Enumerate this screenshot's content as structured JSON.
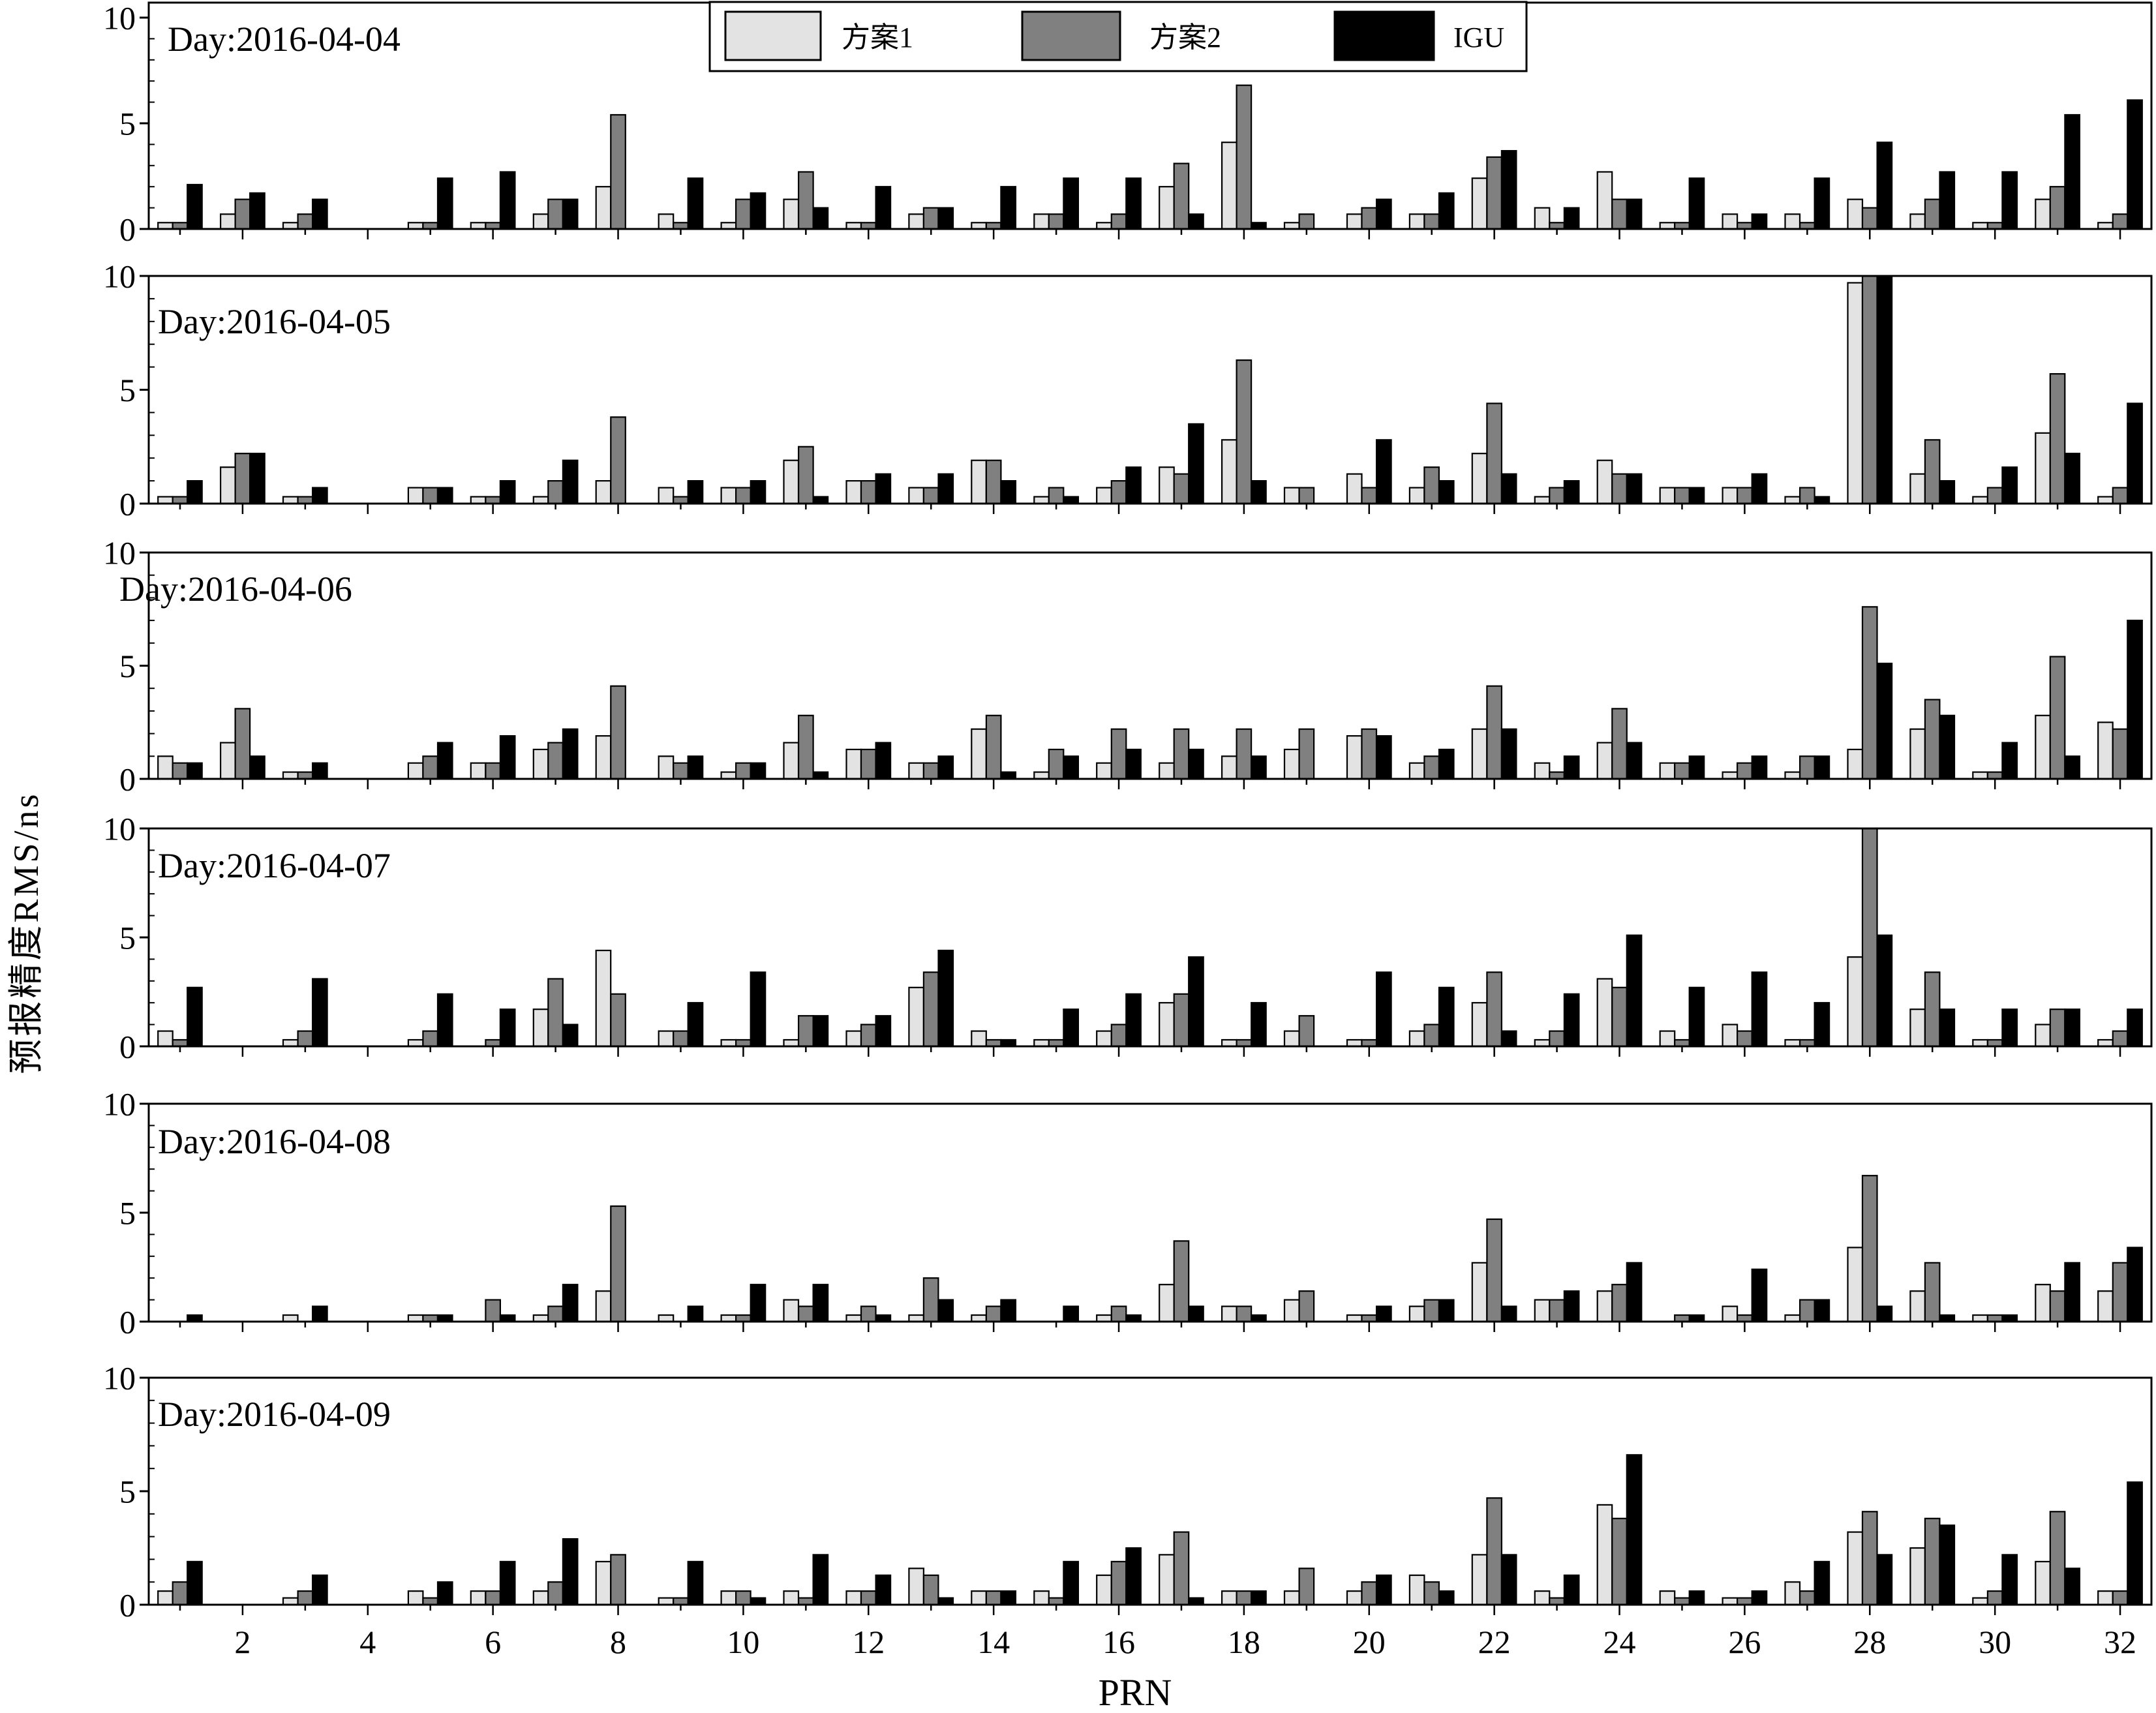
{
  "figure": {
    "ylabel": "预报精度RMS/ns"
  },
  "chart_data": [
    {
      "type": "bar",
      "title": "Day:2016-04-04",
      "categories": [
        1,
        2,
        3,
        4,
        5,
        6,
        7,
        8,
        9,
        10,
        11,
        12,
        13,
        14,
        15,
        16,
        17,
        18,
        19,
        20,
        21,
        22,
        23,
        24,
        25,
        26,
        27,
        28,
        29,
        30,
        31,
        32
      ],
      "series": [
        {
          "name": "方案1",
          "color": "#e3e3e3",
          "values": [
            0.3,
            0.7,
            0.3,
            0,
            0.3,
            0.3,
            0.7,
            2.0,
            0.7,
            0.3,
            1.4,
            0.3,
            0.7,
            0.3,
            0.7,
            0.3,
            2.0,
            4.1,
            0.3,
            0.7,
            0.7,
            2.4,
            1.0,
            2.7,
            0.3,
            0.7,
            0.7,
            1.4,
            0.7,
            0.3,
            1.4,
            0.3
          ]
        },
        {
          "name": "方案2",
          "color": "#808080",
          "values": [
            0.3,
            1.4,
            0.7,
            0,
            0.3,
            0.3,
            1.4,
            5.4,
            0.3,
            1.4,
            2.7,
            0.3,
            1.0,
            0.3,
            0.7,
            0.7,
            3.1,
            6.8,
            0.7,
            1.0,
            0.7,
            3.4,
            0.3,
            1.4,
            0.3,
            0.3,
            0.3,
            1.0,
            1.4,
            0.3,
            2.0,
            0.7
          ]
        },
        {
          "name": "IGU",
          "color": "#000000",
          "values": [
            2.1,
            1.7,
            1.4,
            0,
            2.4,
            2.7,
            1.4,
            0,
            2.4,
            1.7,
            1.0,
            2.0,
            1.0,
            2.0,
            2.4,
            2.4,
            0.7,
            0.3,
            0,
            1.4,
            1.7,
            3.7,
            1.0,
            1.4,
            2.4,
            0.7,
            2.4,
            4.1,
            2.7,
            2.7,
            5.4,
            6.1
          ]
        }
      ],
      "xlim": [
        0.5,
        32.5
      ],
      "ylim": [
        0,
        10
      ],
      "yticks": [
        0,
        5,
        10
      ],
      "grid": false,
      "legend": "top-center"
    },
    {
      "type": "bar",
      "title": "Day:2016-04-05",
      "categories": [
        1,
        2,
        3,
        4,
        5,
        6,
        7,
        8,
        9,
        10,
        11,
        12,
        13,
        14,
        15,
        16,
        17,
        18,
        19,
        20,
        21,
        22,
        23,
        24,
        25,
        26,
        27,
        28,
        29,
        30,
        31,
        32
      ],
      "series": [
        {
          "name": "方案1",
          "color": "#e3e3e3",
          "values": [
            0.3,
            1.6,
            0.3,
            0,
            0.7,
            0.3,
            0.3,
            1.0,
            0.7,
            0.7,
            1.9,
            1.0,
            0.7,
            1.9,
            0.3,
            0.7,
            1.6,
            2.8,
            0.7,
            1.3,
            0.7,
            2.2,
            0.3,
            1.9,
            0.7,
            0.7,
            0.3,
            9.7,
            1.3,
            0.3,
            3.1,
            0.3
          ]
        },
        {
          "name": "方案2",
          "color": "#808080",
          "values": [
            0.3,
            2.2,
            0.3,
            0,
            0.7,
            0.3,
            1.0,
            3.8,
            0.3,
            0.7,
            2.5,
            1.0,
            0.7,
            1.9,
            0.7,
            1.0,
            1.3,
            6.3,
            0.7,
            0.7,
            1.6,
            4.4,
            0.7,
            1.3,
            0.7,
            0.7,
            0.7,
            10,
            2.8,
            0.7,
            5.7,
            0.7
          ]
        },
        {
          "name": "IGU",
          "color": "#000000",
          "values": [
            1.0,
            2.2,
            0.7,
            0,
            0.7,
            1.0,
            1.9,
            0,
            1.0,
            1.0,
            0.3,
            1.3,
            1.3,
            1.0,
            0.3,
            1.6,
            3.5,
            1.0,
            0,
            2.8,
            1.0,
            1.3,
            1.0,
            1.3,
            0.7,
            1.3,
            0.3,
            10,
            1.0,
            1.6,
            2.2,
            4.4
          ]
        }
      ],
      "xlim": [
        0.5,
        32.5
      ],
      "ylim": [
        0,
        10
      ],
      "yticks": [
        0,
        5,
        10
      ],
      "grid": false
    },
    {
      "type": "bar",
      "title": "Day:2016-04-06",
      "categories": [
        1,
        2,
        3,
        4,
        5,
        6,
        7,
        8,
        9,
        10,
        11,
        12,
        13,
        14,
        15,
        16,
        17,
        18,
        19,
        20,
        21,
        22,
        23,
        24,
        25,
        26,
        27,
        28,
        29,
        30,
        31,
        32
      ],
      "series": [
        {
          "name": "方案1",
          "color": "#e3e3e3",
          "values": [
            1.0,
            1.6,
            0.3,
            0,
            0.7,
            0.7,
            1.3,
            1.9,
            1.0,
            0.3,
            1.6,
            1.3,
            0.7,
            2.2,
            0.3,
            0.7,
            0.7,
            1.0,
            1.3,
            1.9,
            0.7,
            2.2,
            0.7,
            1.6,
            0.7,
            0.3,
            0.3,
            1.3,
            2.2,
            0.3,
            2.8,
            2.5
          ]
        },
        {
          "name": "方案2",
          "color": "#808080",
          "values": [
            0.7,
            3.1,
            0.3,
            0,
            1.0,
            0.7,
            1.6,
            4.1,
            0.7,
            0.7,
            2.8,
            1.3,
            0.7,
            2.8,
            1.3,
            2.2,
            2.2,
            2.2,
            2.2,
            2.2,
            1.0,
            4.1,
            0.3,
            3.1,
            0.7,
            0.7,
            1.0,
            7.6,
            3.5,
            0.3,
            5.4,
            2.2
          ]
        },
        {
          "name": "IGU",
          "color": "#000000",
          "values": [
            0.7,
            1.0,
            0.7,
            0,
            1.6,
            1.9,
            2.2,
            0,
            1.0,
            0.7,
            0.3,
            1.6,
            1.0,
            0.3,
            1.0,
            1.3,
            1.3,
            1.0,
            0,
            1.9,
            1.3,
            2.2,
            1.0,
            1.6,
            1.0,
            1.0,
            1.0,
            5.1,
            2.8,
            1.6,
            1.0,
            7.0
          ]
        }
      ],
      "xlim": [
        0.5,
        32.5
      ],
      "ylim": [
        0,
        10
      ],
      "yticks": [
        0,
        5,
        10
      ],
      "grid": false
    },
    {
      "type": "bar",
      "title": "Day:2016-04-07",
      "categories": [
        1,
        2,
        3,
        4,
        5,
        6,
        7,
        8,
        9,
        10,
        11,
        12,
        13,
        14,
        15,
        16,
        17,
        18,
        19,
        20,
        21,
        22,
        23,
        24,
        25,
        26,
        27,
        28,
        29,
        30,
        31,
        32
      ],
      "series": [
        {
          "name": "方案1",
          "color": "#e3e3e3",
          "values": [
            0.7,
            0,
            0.3,
            0,
            0.3,
            0,
            1.7,
            4.4,
            0.7,
            0.3,
            0.3,
            0.7,
            2.7,
            0.7,
            0.3,
            0.7,
            2.0,
            0.3,
            0.7,
            0.3,
            0.7,
            2.0,
            0.3,
            3.1,
            0.7,
            1.0,
            0.3,
            4.1,
            1.7,
            0.3,
            1.0,
            0.3
          ]
        },
        {
          "name": "方案2",
          "color": "#808080",
          "values": [
            0.3,
            0,
            0.7,
            0,
            0.7,
            0.3,
            3.1,
            2.4,
            0.7,
            0.3,
            1.4,
            1.0,
            3.4,
            0.3,
            0.3,
            1.0,
            2.4,
            0.3,
            1.4,
            0.3,
            1.0,
            3.4,
            0.7,
            2.7,
            0.3,
            0.7,
            0.3,
            10,
            3.4,
            0.3,
            1.7,
            0.7
          ]
        },
        {
          "name": "IGU",
          "color": "#000000",
          "values": [
            2.7,
            0,
            3.1,
            0,
            2.4,
            1.7,
            1.0,
            0,
            2.0,
            3.4,
            1.4,
            1.4,
            4.4,
            0.3,
            1.7,
            2.4,
            4.1,
            2.0,
            0,
            3.4,
            2.7,
            0.7,
            2.4,
            5.1,
            2.7,
            3.4,
            2.0,
            5.1,
            1.7,
            1.7,
            1.7,
            1.7
          ]
        }
      ],
      "xlim": [
        0.5,
        32.5
      ],
      "ylim": [
        0,
        10
      ],
      "yticks": [
        0,
        5,
        10
      ],
      "grid": false
    },
    {
      "type": "bar",
      "title": "Day:2016-04-08",
      "categories": [
        1,
        2,
        3,
        4,
        5,
        6,
        7,
        8,
        9,
        10,
        11,
        12,
        13,
        14,
        15,
        16,
        17,
        18,
        19,
        20,
        21,
        22,
        23,
        24,
        25,
        26,
        27,
        28,
        29,
        30,
        31,
        32
      ],
      "series": [
        {
          "name": "方案1",
          "color": "#e3e3e3",
          "values": [
            0,
            0,
            0.3,
            0,
            0.3,
            0,
            0.3,
            1.4,
            0.3,
            0.3,
            1.0,
            0.3,
            0.3,
            0.3,
            0,
            0.3,
            1.7,
            0.7,
            1.0,
            0.3,
            0.7,
            2.7,
            1.0,
            1.4,
            0,
            0.7,
            0.3,
            3.4,
            1.4,
            0.3,
            1.7,
            1.4
          ]
        },
        {
          "name": "方案2",
          "color": "#808080",
          "values": [
            0,
            0,
            0,
            0,
            0.3,
            1.0,
            0.7,
            5.3,
            0,
            0.3,
            0.7,
            0.7,
            2.0,
            0.7,
            0,
            0.7,
            3.7,
            0.7,
            1.4,
            0.3,
            1.0,
            4.7,
            1.0,
            1.7,
            0.3,
            0.3,
            1.0,
            6.7,
            2.7,
            0.3,
            1.4,
            2.7
          ]
        },
        {
          "name": "IGU",
          "color": "#000000",
          "values": [
            0.3,
            0,
            0.7,
            0,
            0.3,
            0.3,
            1.7,
            0,
            0.7,
            1.7,
            1.7,
            0.3,
            1.0,
            1.0,
            0.7,
            0.3,
            0.7,
            0.3,
            0,
            0.7,
            1.0,
            0.7,
            1.4,
            2.7,
            0.3,
            2.4,
            1.0,
            0.7,
            0.3,
            0.3,
            2.7,
            3.4
          ]
        }
      ],
      "xlim": [
        0.5,
        32.5
      ],
      "ylim": [
        0,
        10
      ],
      "yticks": [
        0,
        5,
        10
      ],
      "grid": false
    },
    {
      "type": "bar",
      "title": "Day:2016-04-09",
      "categories": [
        1,
        2,
        3,
        4,
        5,
        6,
        7,
        8,
        9,
        10,
        11,
        12,
        13,
        14,
        15,
        16,
        17,
        18,
        19,
        20,
        21,
        22,
        23,
        24,
        25,
        26,
        27,
        28,
        29,
        30,
        31,
        32
      ],
      "series": [
        {
          "name": "方案1",
          "color": "#e3e3e3",
          "values": [
            0.6,
            0,
            0.3,
            0,
            0.6,
            0.6,
            0.6,
            1.9,
            0.3,
            0.6,
            0.6,
            0.6,
            1.6,
            0.6,
            0.6,
            1.3,
            2.2,
            0.6,
            0.6,
            0.6,
            1.3,
            2.2,
            0.6,
            4.4,
            0.6,
            0.3,
            1.0,
            3.2,
            2.5,
            0.3,
            1.9,
            0.6
          ]
        },
        {
          "name": "方案2",
          "color": "#808080",
          "values": [
            1.0,
            0,
            0.6,
            0,
            0.3,
            0.6,
            1.0,
            2.2,
            0.3,
            0.6,
            0.3,
            0.6,
            1.3,
            0.6,
            0.3,
            1.9,
            3.2,
            0.6,
            1.6,
            1.0,
            1.0,
            4.7,
            0.3,
            3.8,
            0.3,
            0.3,
            0.6,
            4.1,
            3.8,
            0.6,
            4.1,
            0.6
          ]
        },
        {
          "name": "IGU",
          "color": "#000000",
          "values": [
            1.9,
            0,
            1.3,
            0,
            1.0,
            1.9,
            2.9,
            0,
            1.9,
            0.3,
            2.2,
            1.3,
            0.3,
            0.6,
            1.9,
            2.5,
            0.3,
            0.6,
            0,
            1.3,
            0.6,
            2.2,
            1.3,
            6.6,
            0.6,
            0.6,
            1.9,
            2.2,
            3.5,
            2.2,
            1.6,
            5.4
          ]
        }
      ],
      "xlim": [
        0.5,
        32.5
      ],
      "ylim": [
        0,
        10
      ],
      "yticks": [
        0,
        5,
        10
      ],
      "xticks": [
        2,
        4,
        6,
        8,
        10,
        12,
        14,
        16,
        18,
        20,
        22,
        24,
        26,
        28,
        30,
        32
      ],
      "xlabel": "PRN",
      "grid": false
    }
  ]
}
